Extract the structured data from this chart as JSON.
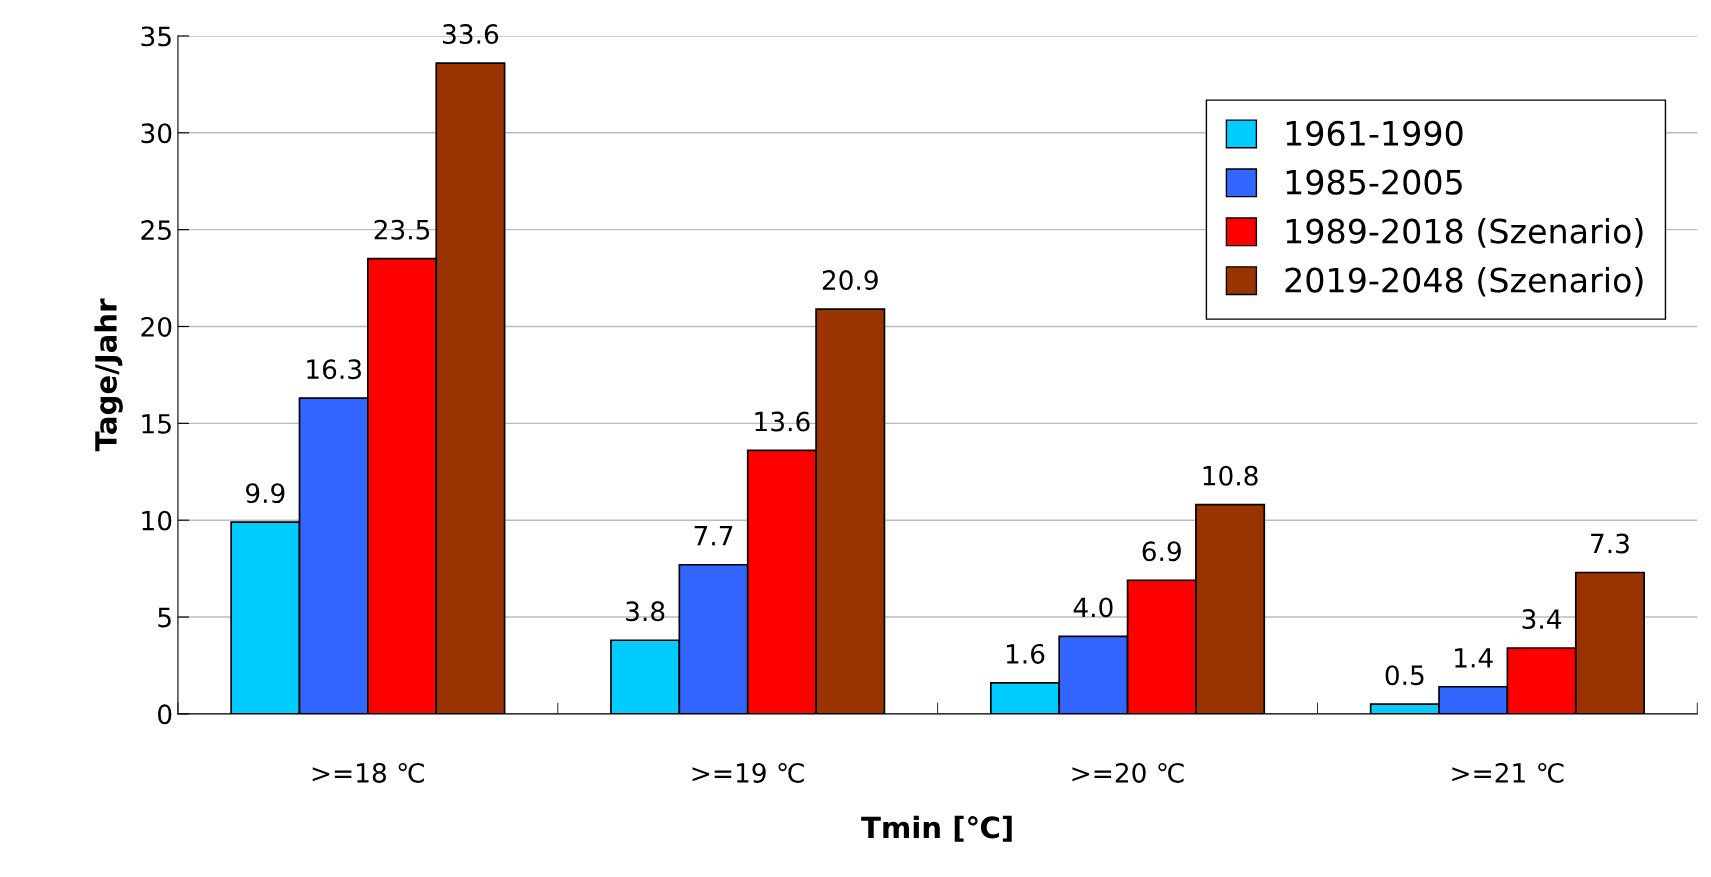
{
  "chart_data": {
    "type": "bar",
    "xlabel": "Tmin [℃]",
    "ylabel": "Tage/Jahr",
    "categories": [
      ">=18 ℃",
      ">=19 ℃",
      ">=20 ℃",
      ">=21 ℃"
    ],
    "series": [
      {
        "name": "1961-1990",
        "color": "#00ccff",
        "values": [
          9.9,
          3.8,
          1.6,
          0.5
        ],
        "value_labels": [
          "9.9",
          "3.8",
          "1.6",
          "0.5"
        ]
      },
      {
        "name": "1985-2005",
        "color": "#3366ff",
        "values": [
          16.3,
          7.7,
          4.0,
          1.4
        ],
        "value_labels": [
          "16.3",
          "7.7",
          "4.0",
          "1.4"
        ]
      },
      {
        "name": "1989-2018 (Szenario)",
        "color": "#ff0000",
        "values": [
          23.5,
          13.6,
          6.9,
          3.4
        ],
        "value_labels": [
          "23.5",
          "13.6",
          "6.9",
          "3.4"
        ]
      },
      {
        "name": "2019-2048 (Szenario)",
        "color": "#993300",
        "values": [
          33.6,
          20.9,
          10.8,
          7.3
        ],
        "value_labels": [
          "33.6",
          "20.9",
          "10.8",
          "7.3"
        ]
      }
    ],
    "ylim": [
      0,
      35
    ],
    "yticks": [
      0,
      5,
      10,
      15,
      20,
      25,
      30,
      35
    ],
    "grid": "y",
    "legend": "top right"
  }
}
